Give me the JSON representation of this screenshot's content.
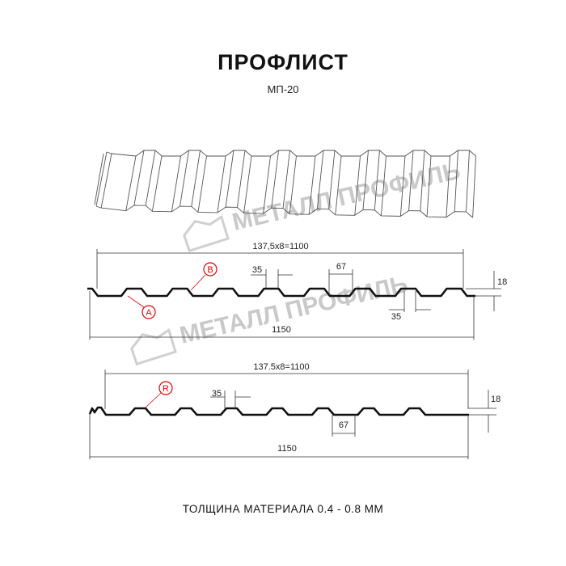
{
  "header": {
    "title": "ПРОФЛИСТ",
    "subtitle": "МП-20"
  },
  "watermark": {
    "text": "МЕТАЛЛ ПРОФИЛЬ"
  },
  "profile_top": {
    "pitch_label": "137,5x8=1100",
    "width_label": "1150",
    "rib_top_label": "35",
    "rib_bottom_label": "35",
    "flat_label": "67",
    "height_label": "18",
    "callout_a": "A",
    "callout_b": "B"
  },
  "profile_bottom": {
    "pitch_label": "137.5x8=1100",
    "width_label": "1150",
    "rib_top_label": "35",
    "flat_label": "67",
    "height_label": "18",
    "callout_r": "R"
  },
  "footer": {
    "text": "ТОЛЩИНА МАТЕРИАЛА 0.4 - 0.8 ММ"
  },
  "colors": {
    "profile": "#111111",
    "callout": "#e30000",
    "dimension": "#333333",
    "watermark": "#c9c9c9"
  }
}
